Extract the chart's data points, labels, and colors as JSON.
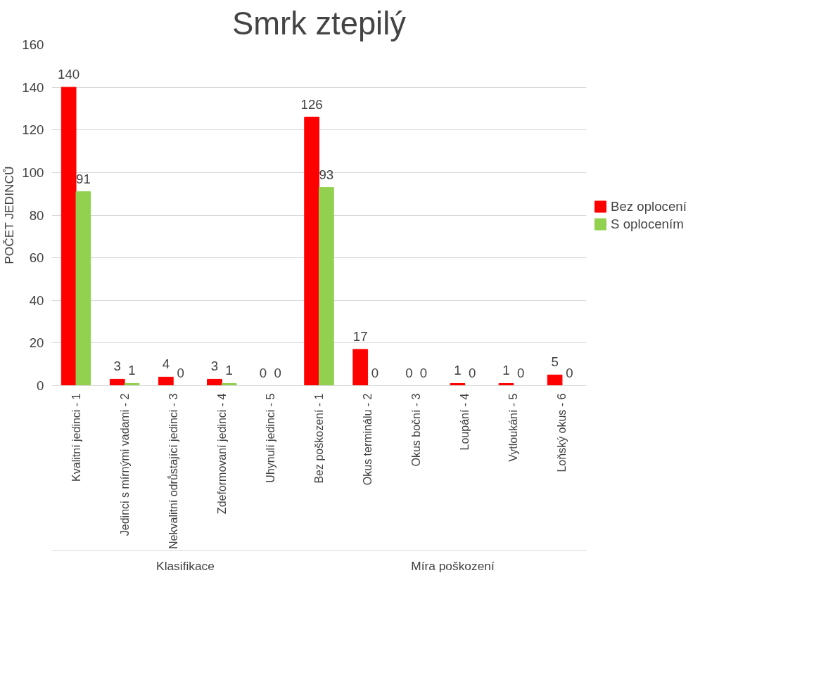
{
  "chart_data": {
    "type": "bar",
    "title": "Smrk ztepilý",
    "ylabel": "POČET JEDINCŮ",
    "categories": [
      "Kvalitní jedinci - 1",
      "Jedinci s mírnými vadami - 2",
      "Nekvalitní odrůstající jedinci - 3",
      "Zdeformovaní jedinci - 4",
      "Uhynulí jedinci - 5",
      "Bez poškození - 1",
      "Okus terminálu - 2",
      "Okus boční - 3",
      "Loupání - 4",
      "Vytloukání - 5",
      "Loňský okus - 6"
    ],
    "series": [
      {
        "name": "Bez oplocení",
        "color": "#ff0000",
        "values": [
          140,
          3,
          4,
          3,
          0,
          126,
          17,
          0,
          1,
          1,
          5
        ]
      },
      {
        "name": "S oplocením",
        "color": "#92d050",
        "values": [
          91,
          1,
          0,
          1,
          0,
          93,
          0,
          0,
          0,
          0,
          0
        ]
      }
    ],
    "ylim": [
      0,
      160
    ],
    "yticks": [
      0,
      20,
      40,
      60,
      80,
      100,
      120,
      140,
      160
    ],
    "grid": "y",
    "legend": "right",
    "data_labels": true,
    "annotations": [
      "Klasifikace",
      "Míra poškození"
    ]
  }
}
